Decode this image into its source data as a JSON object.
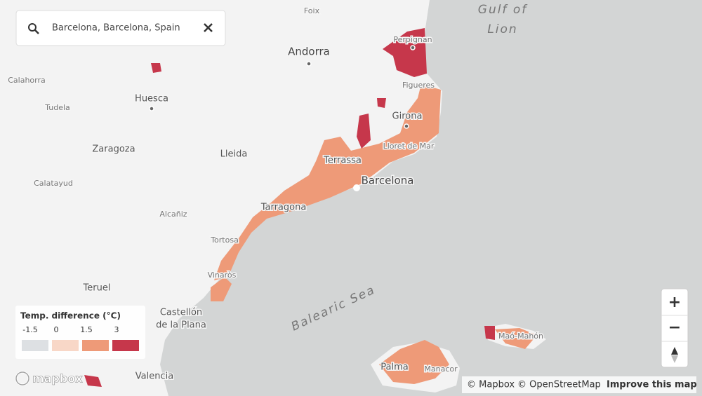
{
  "search": {
    "query": "Barcelona, Barcelona, Spain"
  },
  "places": {
    "gulf_of": "Gulf of",
    "lion": "Lion",
    "foix": "Foix",
    "andorra": "Andorra",
    "perpignan": "Perpignan",
    "figueres": "Figueres",
    "girona": "Girona",
    "lloret": "Lloret de Mar",
    "calahorra": "Calahorra",
    "tudela": "Tudela",
    "huesca": "Huesca",
    "zaragoza": "Zaragoza",
    "lleida": "Lleida",
    "terrassa": "Terrassa",
    "barcelona": "Barcelona",
    "calatayud": "Calatayud",
    "tarragona": "Tarragona",
    "alcaniz": "Alcañiz",
    "tortosa": "Tortosa",
    "vinaros": "Vinaròs",
    "teruel": "Teruel",
    "castellon": "Castellón",
    "de_la_plana": "de la Plana",
    "valencia": "Valencia",
    "balearic_sea": "Balearic Sea",
    "palma": "Palma",
    "manacor": "Manacor",
    "mahon": "Maó-Mahón"
  },
  "legend": {
    "title": "Temp. difference (°C)",
    "labels": [
      "-1.5",
      "0",
      "1.5",
      "3"
    ],
    "colors": [
      "#dde0e3",
      "#f8d7c7",
      "#ee9a78",
      "#c6374b"
    ]
  },
  "controls": {
    "zoom_in": "+",
    "zoom_out": "−"
  },
  "logo": "mapbox",
  "attribution": {
    "mapbox": "© Mapbox",
    "osm": "© OpenStreetMap",
    "improve": "Improve this map"
  }
}
